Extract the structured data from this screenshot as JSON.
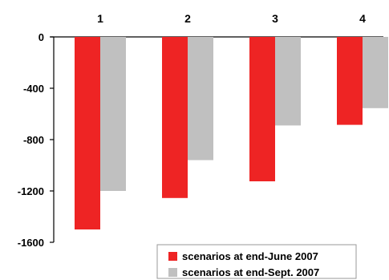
{
  "chart_data": {
    "type": "bar",
    "categories": [
      "1",
      "2",
      "3",
      "4"
    ],
    "series": [
      {
        "name": "scenarios at end-June 2007",
        "values": [
          -1500,
          -1255,
          -1125,
          -685
        ],
        "color": "#ee2424"
      },
      {
        "name": "scenarios at end-Sept. 2007",
        "values": [
          -1200,
          -960,
          -690,
          -555
        ],
        "color": "#c0c0c0"
      }
    ],
    "yticks": [
      "0",
      "-400",
      "-800",
      "-1200",
      "-1600"
    ],
    "ylim": [
      -1600,
      0
    ],
    "category_axis_position": "top",
    "legend_position": "bottom-right",
    "grid": false
  }
}
